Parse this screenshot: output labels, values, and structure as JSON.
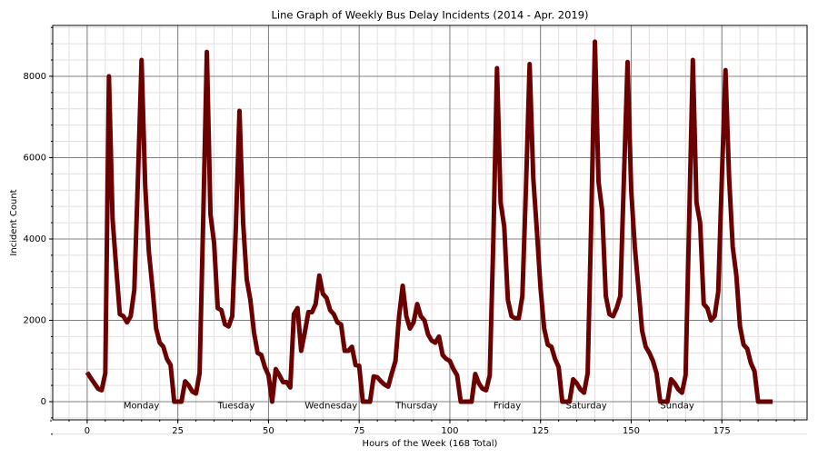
{
  "chart_data": {
    "type": "line",
    "title": "Line Graph of Weekly Bus Delay Incidents (2014 - Apr. 2019)",
    "x_label": "Hours of the Week (168 Total)",
    "y_label": "Incident Count",
    "x": [
      0,
      1,
      2,
      3,
      4,
      5,
      6,
      7,
      8,
      9,
      10,
      11,
      12,
      13,
      14,
      15,
      16,
      17,
      18,
      19,
      20,
      21,
      22,
      23,
      24,
      25,
      26,
      27,
      28,
      29,
      30,
      31,
      32,
      33,
      34,
      35,
      36,
      37,
      38,
      39,
      40,
      41,
      42,
      43,
      44,
      45,
      46,
      47,
      48,
      49,
      50,
      51,
      52,
      53,
      54,
      55,
      56,
      57,
      58,
      59,
      60,
      61,
      62,
      63,
      64,
      65,
      66,
      67,
      68,
      69,
      70,
      71,
      72,
      73,
      74,
      75,
      76,
      77,
      78,
      79,
      80,
      81,
      82,
      83,
      84,
      85,
      86,
      87,
      88,
      89,
      90,
      91,
      92,
      93,
      94,
      95,
      96,
      97,
      98,
      99,
      100,
      101,
      102,
      103,
      104,
      105,
      106,
      107,
      108,
      109,
      110,
      111,
      112,
      113,
      114,
      115,
      116,
      117,
      118,
      119,
      120,
      121,
      122,
      123,
      124,
      125,
      126,
      127,
      128,
      129,
      130,
      131,
      132,
      133,
      134,
      135,
      136,
      137,
      138,
      139,
      140,
      141,
      142,
      143,
      144,
      145,
      146,
      147,
      148,
      149,
      150,
      151,
      152,
      153,
      154,
      155,
      156,
      157,
      158,
      159,
      160,
      161,
      162,
      163,
      164,
      165,
      166,
      167,
      168,
      169,
      170,
      171,
      172,
      173,
      174,
      175,
      176,
      177,
      178,
      179,
      180,
      181,
      182,
      183,
      184,
      185,
      186,
      187,
      188,
      189
    ],
    "series": [
      {
        "name": "Incident Count",
        "color": "#6b0000",
        "values": [
          720,
          580,
          450,
          320,
          280,
          700,
          8000,
          4500,
          3300,
          2150,
          2100,
          1950,
          2100,
          2750,
          5500,
          8400,
          5300,
          3700,
          2800,
          1800,
          1450,
          1350,
          1050,
          900,
          0,
          0,
          0,
          500,
          400,
          250,
          200,
          700,
          4500,
          8600,
          4600,
          3900,
          2300,
          2250,
          1900,
          1850,
          2100,
          4300,
          7150,
          4400,
          3000,
          2500,
          1700,
          1200,
          1150,
          850,
          650,
          0,
          800,
          650,
          480,
          480,
          350,
          2150,
          2300,
          1250,
          1700,
          2200,
          2200,
          2400,
          3100,
          2650,
          2550,
          2250,
          2150,
          1950,
          1900,
          1250,
          1250,
          1350,
          900,
          880,
          0,
          0,
          0,
          620,
          600,
          500,
          420,
          370,
          700,
          1000,
          2100,
          2850,
          2100,
          1800,
          1950,
          2400,
          2100,
          2000,
          1650,
          1500,
          1450,
          1600,
          1150,
          1050,
          1000,
          800,
          650,
          0,
          0,
          0,
          0,
          680,
          450,
          320,
          280,
          650,
          4000,
          8200,
          4900,
          4300,
          2500,
          2100,
          2050,
          2050,
          2600,
          5300,
          8300,
          5500,
          4200,
          2800,
          1800,
          1400,
          1350,
          1050,
          850,
          0,
          0,
          0,
          550,
          450,
          300,
          220,
          700,
          4500,
          8850,
          5400,
          4700,
          2600,
          2150,
          2100,
          2300,
          2600,
          5500,
          8350,
          5200,
          3800,
          2800,
          1750,
          1350,
          1200,
          1000,
          700,
          0,
          0,
          0,
          550,
          450,
          300,
          220,
          650,
          4500,
          8400,
          4900,
          4400,
          2400,
          2300,
          2000,
          2100,
          2700,
          5500,
          8150,
          5500,
          3800,
          3100,
          1850,
          1400,
          1300,
          950,
          750,
          0,
          0,
          0,
          0,
          0
        ]
      }
    ],
    "annotations": [
      {
        "text": "Monday",
        "x": 10,
        "y": -100
      },
      {
        "text": "Tuesday",
        "x": 36,
        "y": -100
      },
      {
        "text": "Wednesday",
        "x": 60,
        "y": -100
      },
      {
        "text": "Thursday",
        "x": 85,
        "y": -100
      },
      {
        "text": "Friday",
        "x": 112,
        "y": -100
      },
      {
        "text": "Saturday",
        "x": 132,
        "y": -100
      },
      {
        "text": "Sunday",
        "x": 158,
        "y": -100
      }
    ],
    "xlim": [
      -9.5,
      198.5
    ],
    "ylim": [
      -447,
      9250
    ],
    "xticks": [
      0,
      25,
      50,
      75,
      100,
      125,
      150,
      175
    ],
    "yticks": [
      0,
      2000,
      4000,
      6000,
      8000
    ],
    "grid": true,
    "minor_grid": true
  }
}
